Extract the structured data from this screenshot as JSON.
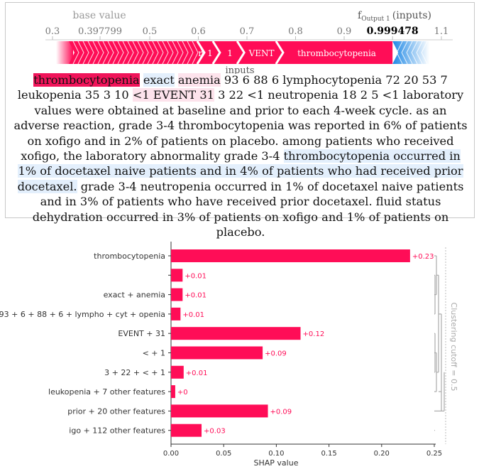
{
  "force_plot": {
    "base_value_label": "base value",
    "output_label_prefix": "f",
    "output_label_sub": "Output 1",
    "output_label_suffix": "(inputs)",
    "axis_ticks": [
      "0.3",
      "0.397799",
      "0.5",
      "0.6",
      "0.7",
      "0.8",
      "0.9",
      "0.999478",
      "1.1"
    ],
    "axis_tick_values": [
      0.3,
      0.397799,
      0.5,
      0.6,
      0.7,
      0.8,
      0.9,
      0.999478,
      1.1
    ],
    "base_value": 0.397799,
    "output_value": 0.999478,
    "x_range": [
      0.3,
      1.1
    ],
    "segment_labels": [
      "r",
      "1",
      "1",
      "VENT",
      "thrombocytopenia"
    ],
    "segment_values": [
      0.608,
      0.64,
      0.69,
      0.77,
      0.999478
    ],
    "inputs_label": "inputs",
    "positive_color": "#ff0d57",
    "negative_color": "#1e88e5"
  },
  "text_explanation": {
    "tokens": [
      {
        "t": "thrombocytopenia",
        "s": "hi"
      },
      {
        "t": "exact",
        "s": "blue"
      },
      {
        "t": "anemia",
        "s": "pink"
      },
      {
        "t": "93 6 88 6 lymphocytopenia 72 20 53 7 leukopenia 35",
        "s": ""
      },
      {
        "t": "3 10",
        "s": ""
      },
      {
        "t": "<1 EVENT 31",
        "s": "pink"
      },
      {
        "t": "3 22 <1 neutropenia 18 2 5 <1 laboratory values were obtained at baseline and prior to each 4-week cycle. as an adverse reaction, grade 3-4 thrombocytopenia was reported in 6% of patients on xofigo and in 2% of patients on placebo. among patients who received xofigo, the laboratory abnormality grade 3-4",
        "s": ""
      },
      {
        "t": "thrombocytopenia occurred in 1% of docetaxel naive patients and in 4% of patients who had received prior docetaxel.",
        "s": "blue"
      },
      {
        "t": "grade 3-4 neutropenia occurred in 1% of docetaxel naive patients and in 3% of patients who have received prior docetaxel. fluid status dehydration occurred in 3% of patients on xofigo and 1% of patients on placebo.",
        "s": ""
      }
    ]
  },
  "chart_data": {
    "type": "bar",
    "orientation": "horizontal",
    "categories": [
      "thrombocytopenia",
      "",
      "exact + anemia",
      "93 + 6 + 88 + 6 + lympho + cyt + openia",
      "EVENT + 31",
      "< + 1",
      "3 + 22 + < + 1",
      "leukopenia + 7 other features",
      "prior + 20 other features",
      "igo + 112 other features"
    ],
    "values": [
      0.227,
      0.011,
      0.011,
      0.009,
      0.123,
      0.087,
      0.012,
      0.004,
      0.092,
      0.029
    ],
    "data_labels": [
      "+0.23",
      "+0.01",
      "+0.01",
      "+0.01",
      "+0.12",
      "+0.09",
      "+0.01",
      "+0",
      "+0.09",
      "+0.03"
    ],
    "xlabel": "SHAP value",
    "xlim": [
      0,
      0.25
    ],
    "x_ticks": [
      0.0,
      0.05,
      0.1,
      0.15,
      0.2,
      0.25
    ],
    "x_tick_labels": [
      "0.00",
      "0.05",
      "0.10",
      "0.15",
      "0.20",
      "0.25"
    ],
    "cutoff_label": "Clustering cutoff = 0.5",
    "bar_color": "#ff0d57",
    "label_color": "#ff0d57"
  }
}
